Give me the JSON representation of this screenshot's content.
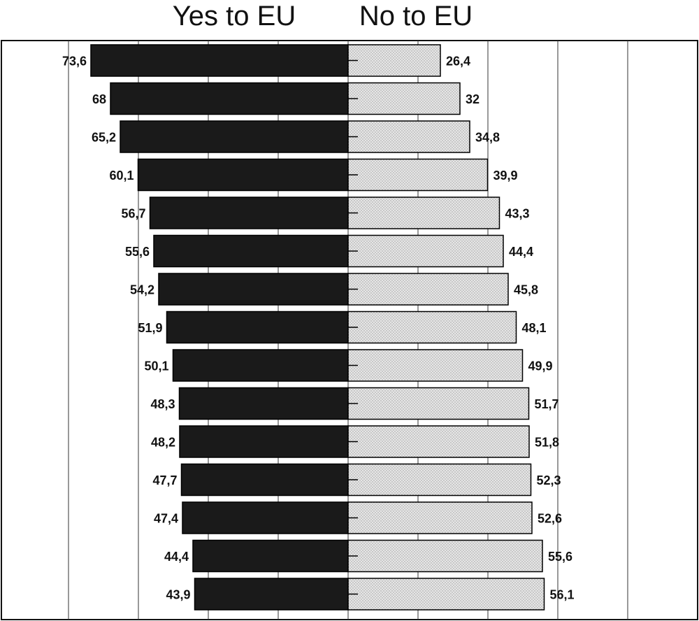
{
  "header": {
    "yes_label": "Yes to EU",
    "no_label": "No to EU"
  },
  "chart_data": {
    "type": "bar",
    "orientation": "horizontal-diverging",
    "title": "",
    "xlabel": "",
    "ylabel": "",
    "xlim": [
      -80,
      100
    ],
    "grid": true,
    "series": [
      {
        "name": "Yes to EU",
        "color": "#1a1a1a",
        "values": [
          73.6,
          68,
          65.2,
          60.1,
          56.7,
          55.6,
          54.2,
          51.9,
          50.1,
          48.3,
          48.2,
          47.7,
          47.4,
          44.4,
          43.9
        ],
        "labels": [
          "73,6",
          "68",
          "65,2",
          "60,1",
          "56,7",
          "55,6",
          "54,2",
          "51,9",
          "50,1",
          "48,3",
          "48,2",
          "47,7",
          "47,4",
          "44,4",
          "43,9"
        ]
      },
      {
        "name": "No to EU",
        "color": "#d9d9d9",
        "values": [
          26.4,
          32,
          34.8,
          39.9,
          43.3,
          44.4,
          45.8,
          48.1,
          49.9,
          51.7,
          51.8,
          52.3,
          52.6,
          55.6,
          56.1
        ],
        "labels": [
          "26,4",
          "32",
          "34,8",
          "39,9",
          "43,3",
          "44,4",
          "45,8",
          "48,1",
          "49,9",
          "51,7",
          "51,8",
          "52,3",
          "52,6",
          "55,6",
          "56,1"
        ]
      }
    ]
  }
}
